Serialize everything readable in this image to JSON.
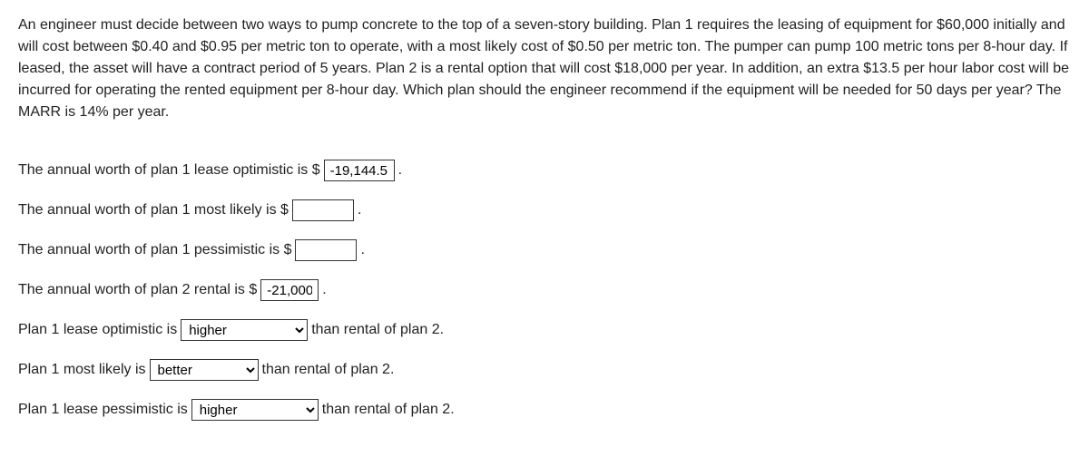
{
  "problem": {
    "text": "An engineer must decide between two ways to pump concrete to the top of a seven-story building. Plan 1 requires the leasing of equipment for $60,000 initially and will cost between $0.40 and $0.95 per metric ton to operate, with a most likely cost of $0.50 per metric ton. The pumper can pump 100 metric tons per 8-hour day. If leased, the asset will have a contract period of 5 years. Plan 2 is a rental option that will cost $18,000 per year. In addition, an extra $13.5 per hour labor cost will be incurred for operating the rented equipment per 8-hour day. Which plan should the engineer recommend if the equipment will be needed for 50 days per year? The MARR is 14% per year."
  },
  "answers": {
    "line1": {
      "prefix": "The annual worth of plan 1 lease optimistic is $",
      "value": "-19,144.5!",
      "suffix": "."
    },
    "line2": {
      "prefix": "The annual worth of plan 1 most likely is $",
      "value": "",
      "suffix": "."
    },
    "line3": {
      "prefix": "The annual worth of plan 1 pessimistic is $",
      "value": "",
      "suffix": "."
    },
    "line4": {
      "prefix": "The annual worth of plan 2 rental is $",
      "value": "-21,000",
      "suffix": "."
    },
    "line5": {
      "prefix": "Plan 1 lease optimistic is",
      "selected": "higher",
      "suffix": "than rental of plan 2."
    },
    "line6": {
      "prefix": "Plan 1 most likely is",
      "selected": "better",
      "suffix": "than rental of plan 2."
    },
    "line7": {
      "prefix": "Plan 1 lease pessimistic is",
      "selected": "higher",
      "suffix": "than rental of plan 2."
    }
  }
}
